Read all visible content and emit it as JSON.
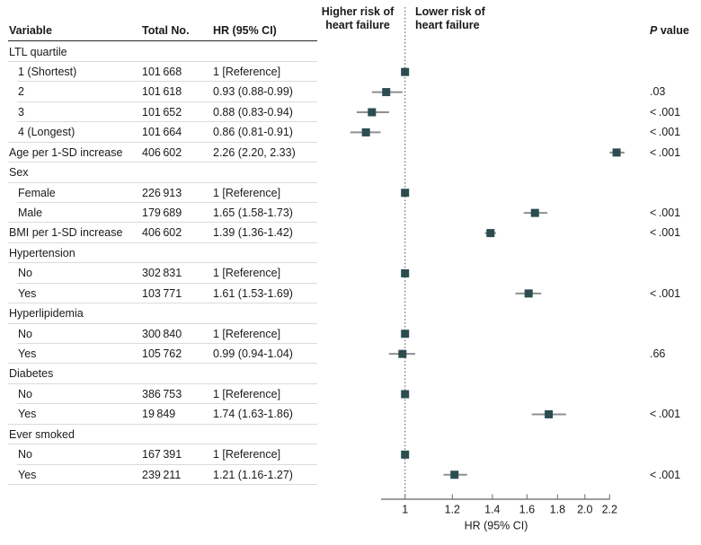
{
  "colors": {
    "marker": "#2b4d50",
    "ci_line": "#8f8f8f",
    "axis": "#7f7f7f",
    "reference_dotted": "#4d4d4d",
    "rule_light": "#dbdbd7",
    "rule_dark": "#262626",
    "text": "#1a1a1a"
  },
  "header": {
    "col_variable": "Variable",
    "col_total": "Total No.",
    "col_hr": "HR (95% CI)",
    "p_italic": "P",
    "p_rest": " value"
  },
  "plot_labels": {
    "left_line1": "Higher risk of",
    "left_line2": "heart failure",
    "right_line1": "Lower risk of",
    "right_line2": "heart failure"
  },
  "chart_data": {
    "type": "scatter",
    "subtype": "forest-plot",
    "scale": "log",
    "xlabel": "HR (95% CI)",
    "x_ticks": [
      "1",
      "1.2",
      "1.4",
      "1.6",
      "1.8",
      "2.0",
      "2.2"
    ],
    "x_tick_values": [
      1,
      1.2,
      1.4,
      1.6,
      1.8,
      2.0,
      2.2
    ],
    "xlim": [
      0.91,
      2.21
    ],
    "reference_line": 1,
    "grid": false,
    "rows": [
      {
        "label": "LTL quartile",
        "group": true,
        "indent": 0,
        "total": "",
        "hr": "",
        "p": "",
        "est": null,
        "lo": null,
        "hi": null
      },
      {
        "label": "1 (Shortest)",
        "group": false,
        "indent": 1,
        "total": "101 668",
        "hr": "1 [Reference]",
        "p": "",
        "est": 1,
        "lo": null,
        "hi": null
      },
      {
        "label": "2",
        "group": false,
        "indent": 1,
        "total": "101 618",
        "hr": "0.93 (0.88-0.99)",
        "p": ".03",
        "est": 0.93,
        "lo": 0.88,
        "hi": 0.99
      },
      {
        "label": "3",
        "group": false,
        "indent": 1,
        "total": "101 652",
        "hr": "0.88 (0.83-0.94)",
        "p": "< .001",
        "est": 0.88,
        "lo": 0.83,
        "hi": 0.94
      },
      {
        "label": "4 (Longest)",
        "group": false,
        "indent": 1,
        "total": "101 664",
        "hr": "0.86 (0.81-0.91)",
        "p": "< .001",
        "est": 0.86,
        "lo": 0.81,
        "hi": 0.91
      },
      {
        "label": "Age per 1-SD increase",
        "group": false,
        "indent": 0,
        "total": "406 602",
        "hr": "2.26 (2.20, 2.33)",
        "p": "< .001",
        "est": 2.26,
        "lo": 2.2,
        "hi": 2.33
      },
      {
        "label": "Sex",
        "group": true,
        "indent": 0,
        "total": "",
        "hr": "",
        "p": "",
        "est": null,
        "lo": null,
        "hi": null
      },
      {
        "label": "Female",
        "group": false,
        "indent": 1,
        "total": "226 913",
        "hr": "1 [Reference]",
        "p": "",
        "est": 1,
        "lo": null,
        "hi": null
      },
      {
        "label": "Male",
        "group": false,
        "indent": 1,
        "total": "179 689",
        "hr": "1.65 (1.58-1.73)",
        "p": "< .001",
        "est": 1.65,
        "lo": 1.58,
        "hi": 1.73
      },
      {
        "label": "BMI per 1-SD increase",
        "group": false,
        "indent": 0,
        "total": "406 602",
        "hr": "1.39 (1.36-1.42)",
        "p": "< .001",
        "est": 1.39,
        "lo": 1.36,
        "hi": 1.42
      },
      {
        "label": "Hypertension",
        "group": true,
        "indent": 0,
        "total": "",
        "hr": "",
        "p": "",
        "est": null,
        "lo": null,
        "hi": null
      },
      {
        "label": "No",
        "group": false,
        "indent": 1,
        "total": "302 831",
        "hr": "1 [Reference]",
        "p": "",
        "est": 1,
        "lo": null,
        "hi": null
      },
      {
        "label": "Yes",
        "group": false,
        "indent": 1,
        "total": "103 771",
        "hr": "1.61 (1.53-1.69)",
        "p": "< .001",
        "est": 1.61,
        "lo": 1.53,
        "hi": 1.69
      },
      {
        "label": "Hyperlipidemia",
        "group": true,
        "indent": 0,
        "total": "",
        "hr": "",
        "p": "",
        "est": null,
        "lo": null,
        "hi": null
      },
      {
        "label": "No",
        "group": false,
        "indent": 1,
        "total": "300 840",
        "hr": "1 [Reference]",
        "p": "",
        "est": 1,
        "lo": null,
        "hi": null
      },
      {
        "label": "Yes",
        "group": false,
        "indent": 1,
        "total": "105 762",
        "hr": "0.99 (0.94-1.04)",
        "p": ".66",
        "est": 0.99,
        "lo": 0.94,
        "hi": 1.04
      },
      {
        "label": "Diabetes",
        "group": true,
        "indent": 0,
        "total": "",
        "hr": "",
        "p": "",
        "est": null,
        "lo": null,
        "hi": null
      },
      {
        "label": "No",
        "group": false,
        "indent": 1,
        "total": "386 753",
        "hr": "1 [Reference]",
        "p": "",
        "est": 1,
        "lo": null,
        "hi": null
      },
      {
        "label": "Yes",
        "group": false,
        "indent": 1,
        "total": "19 849",
        "hr": "1.74 (1.63-1.86)",
        "p": "< .001",
        "est": 1.74,
        "lo": 1.63,
        "hi": 1.86
      },
      {
        "label": "Ever smoked",
        "group": true,
        "indent": 0,
        "total": "",
        "hr": "",
        "p": "",
        "est": null,
        "lo": null,
        "hi": null
      },
      {
        "label": "No",
        "group": false,
        "indent": 1,
        "total": "167 391",
        "hr": "1 [Reference]",
        "p": "",
        "est": 1,
        "lo": null,
        "hi": null
      },
      {
        "label": "Yes",
        "group": false,
        "indent": 1,
        "total": "239 211",
        "hr": "1.21 (1.16-1.27)",
        "p": "< .001",
        "est": 1.21,
        "lo": 1.16,
        "hi": 1.27
      }
    ],
    "p_value_header": "P value"
  }
}
